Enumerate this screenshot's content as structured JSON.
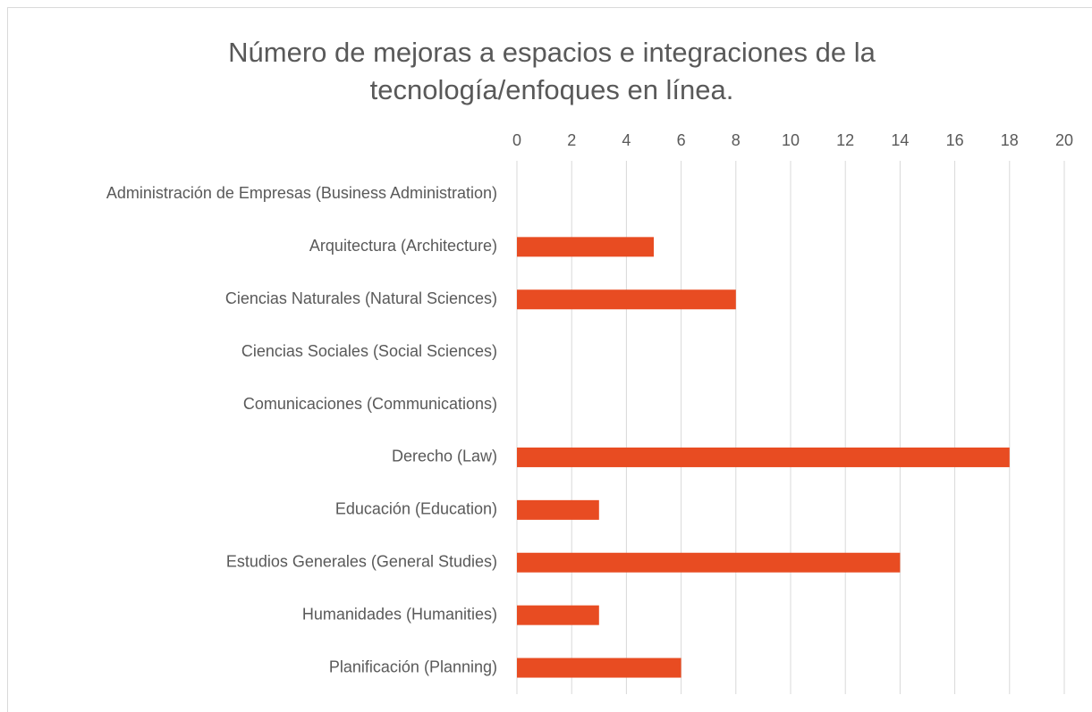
{
  "chart_data": {
    "type": "barh",
    "title": "Número de mejoras a espacios e integraciones de la\ntecnología/enfoques en línea.",
    "categories": [
      "Administración de Empresas (Business Administration)",
      "Arquitectura (Architecture)",
      "Ciencias Naturales (Natural Sciences)",
      "Ciencias Sociales (Social Sciences)",
      "Comunicaciones (Communications)",
      "Derecho (Law)",
      "Educación (Education)",
      "Estudios Generales (General Studies)",
      "Humanidades (Humanities)",
      "Planificación (Planning)"
    ],
    "values": [
      0,
      5,
      8,
      0,
      0,
      18,
      3,
      14,
      3,
      6
    ],
    "color": "#e84c22",
    "xlim": [
      0,
      20
    ],
    "xticks": [
      0,
      2,
      4,
      6,
      8,
      10,
      12,
      14,
      16,
      18,
      20
    ],
    "grid": true
  }
}
